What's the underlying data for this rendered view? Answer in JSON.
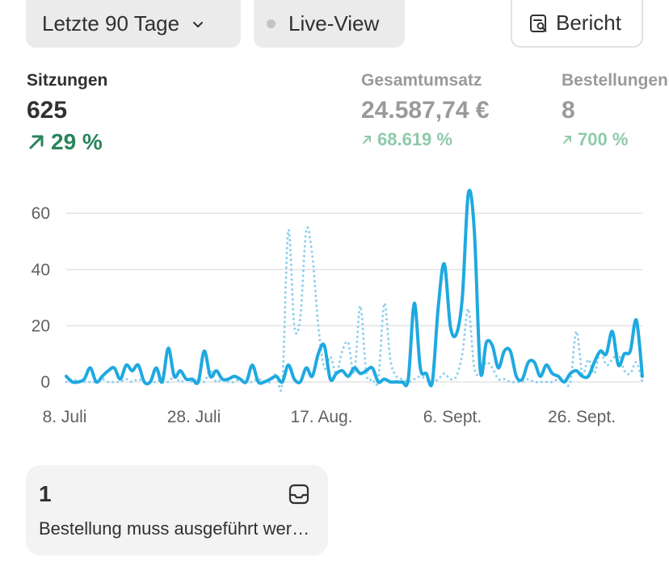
{
  "toolbar": {
    "range_label": "Letzte 90 Tage",
    "live_label": "Live-View",
    "report_label": "Bericht"
  },
  "metrics": [
    {
      "label": "Sitzungen",
      "value": "625",
      "delta": "29 %"
    },
    {
      "label": "Gesamtumsatz",
      "value": "24.587,74 €",
      "delta": "68.619 %"
    },
    {
      "label": "Bestellungen",
      "value": "8",
      "delta": "700 %"
    }
  ],
  "chart_data": {
    "type": "line",
    "ylim": [
      0,
      70
    ],
    "y_ticks": [
      "60",
      "40",
      "20",
      "0"
    ],
    "x_tick_labels": [
      "8. Juli",
      "28. Juli",
      "17. Aug.",
      "6. Sept.",
      "26. Sept."
    ],
    "colors": {
      "line": "#1fa9e0",
      "comparison": "#8fd0ee",
      "grid": "#e3e3e3"
    },
    "series": [
      {
        "style": "solid",
        "values": [
          2,
          0,
          0,
          1,
          5,
          0,
          2,
          4,
          5,
          1,
          6,
          4,
          6,
          0,
          0,
          5,
          0,
          12,
          2,
          4,
          1,
          1,
          0,
          11,
          2,
          4,
          1,
          1,
          2,
          1,
          0,
          6,
          0,
          0,
          1,
          2,
          0,
          6,
          1,
          0,
          5,
          2,
          10,
          13,
          1,
          3,
          4,
          2,
          5,
          3,
          4,
          5,
          0,
          1,
          0,
          0,
          0,
          1,
          28,
          5,
          3,
          0,
          27,
          42,
          20,
          17,
          30,
          67,
          54,
          4,
          14,
          13,
          5,
          11,
          11,
          2,
          1,
          7,
          7,
          2,
          6,
          3,
          2,
          0,
          3,
          4,
          2,
          2,
          7,
          11,
          10,
          18,
          6,
          10,
          11,
          22,
          2
        ]
      },
      {
        "style": "dotted",
        "values": [
          0,
          1,
          0,
          0,
          0,
          0,
          1,
          0,
          0,
          0,
          1,
          0,
          1,
          0,
          0,
          0,
          1,
          0,
          2,
          0,
          1,
          0,
          1,
          0,
          4,
          0,
          1,
          0,
          0,
          1,
          0,
          0,
          1,
          0,
          0,
          3,
          0,
          54,
          20,
          23,
          54,
          45,
          20,
          5,
          9,
          3,
          11,
          14,
          3,
          27,
          3,
          1,
          1,
          28,
          8,
          2,
          1,
          0,
          1,
          2,
          1,
          0,
          1,
          3,
          1,
          2,
          10,
          26,
          5,
          3,
          7,
          5,
          1,
          1,
          0,
          0,
          0,
          1,
          0,
          0,
          0,
          0,
          1,
          0,
          0,
          18,
          3,
          8,
          3,
          11,
          6,
          8,
          10,
          4,
          3,
          7,
          0
        ]
      }
    ]
  },
  "card": {
    "count": "1",
    "text": "Bestellung muss ausgeführt werden"
  },
  "icons": {
    "range_chevron": "chevron-down-icon",
    "report": "report-search-icon",
    "trend": "arrow-up-right-icon",
    "inbox": "inbox-icon"
  }
}
